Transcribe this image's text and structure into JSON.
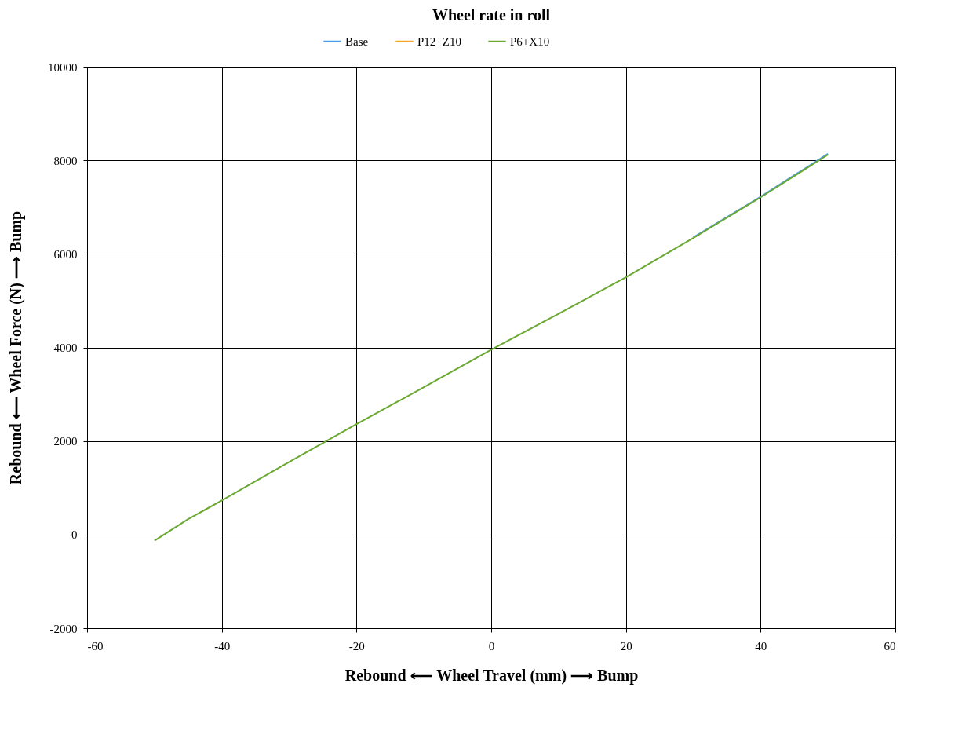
{
  "chart_data": {
    "type": "line",
    "title": "Wheel rate in roll",
    "xlabel": "Rebound ⟵ Wheel Travel (mm) ⟶ Bump",
    "ylabel": "Rebound ⟵ Wheel Force (N) ⟶ Bump",
    "x": [
      -50,
      -45,
      -40,
      -30,
      -20,
      -10,
      0,
      10,
      20,
      30,
      40,
      50
    ],
    "series": [
      {
        "name": "Base",
        "color": "#4a9af0",
        "values": [
          null,
          null,
          null,
          null,
          null,
          null,
          null,
          null,
          null,
          6350,
          7220,
          8140
        ]
      },
      {
        "name": "P12+Z10",
        "color": "#f4a824",
        "values": [
          null,
          null,
          null,
          null,
          null,
          null,
          null,
          null,
          null,
          null,
          null,
          null
        ]
      },
      {
        "name": "P6+X10",
        "color": "#6aa832",
        "values": [
          -130,
          330,
          730,
          1550,
          2360,
          3150,
          3950,
          4720,
          5500,
          6340,
          7210,
          8120
        ]
      }
    ],
    "xlim": [
      -60,
      60
    ],
    "xticks": [
      -60,
      -40,
      -20,
      0,
      20,
      40,
      60
    ],
    "ylim": [
      -2000,
      10000
    ],
    "yticks": [
      -2000,
      0,
      2000,
      4000,
      6000,
      8000,
      10000
    ],
    "grid": true,
    "legend": "top",
    "line_style": "solid"
  }
}
